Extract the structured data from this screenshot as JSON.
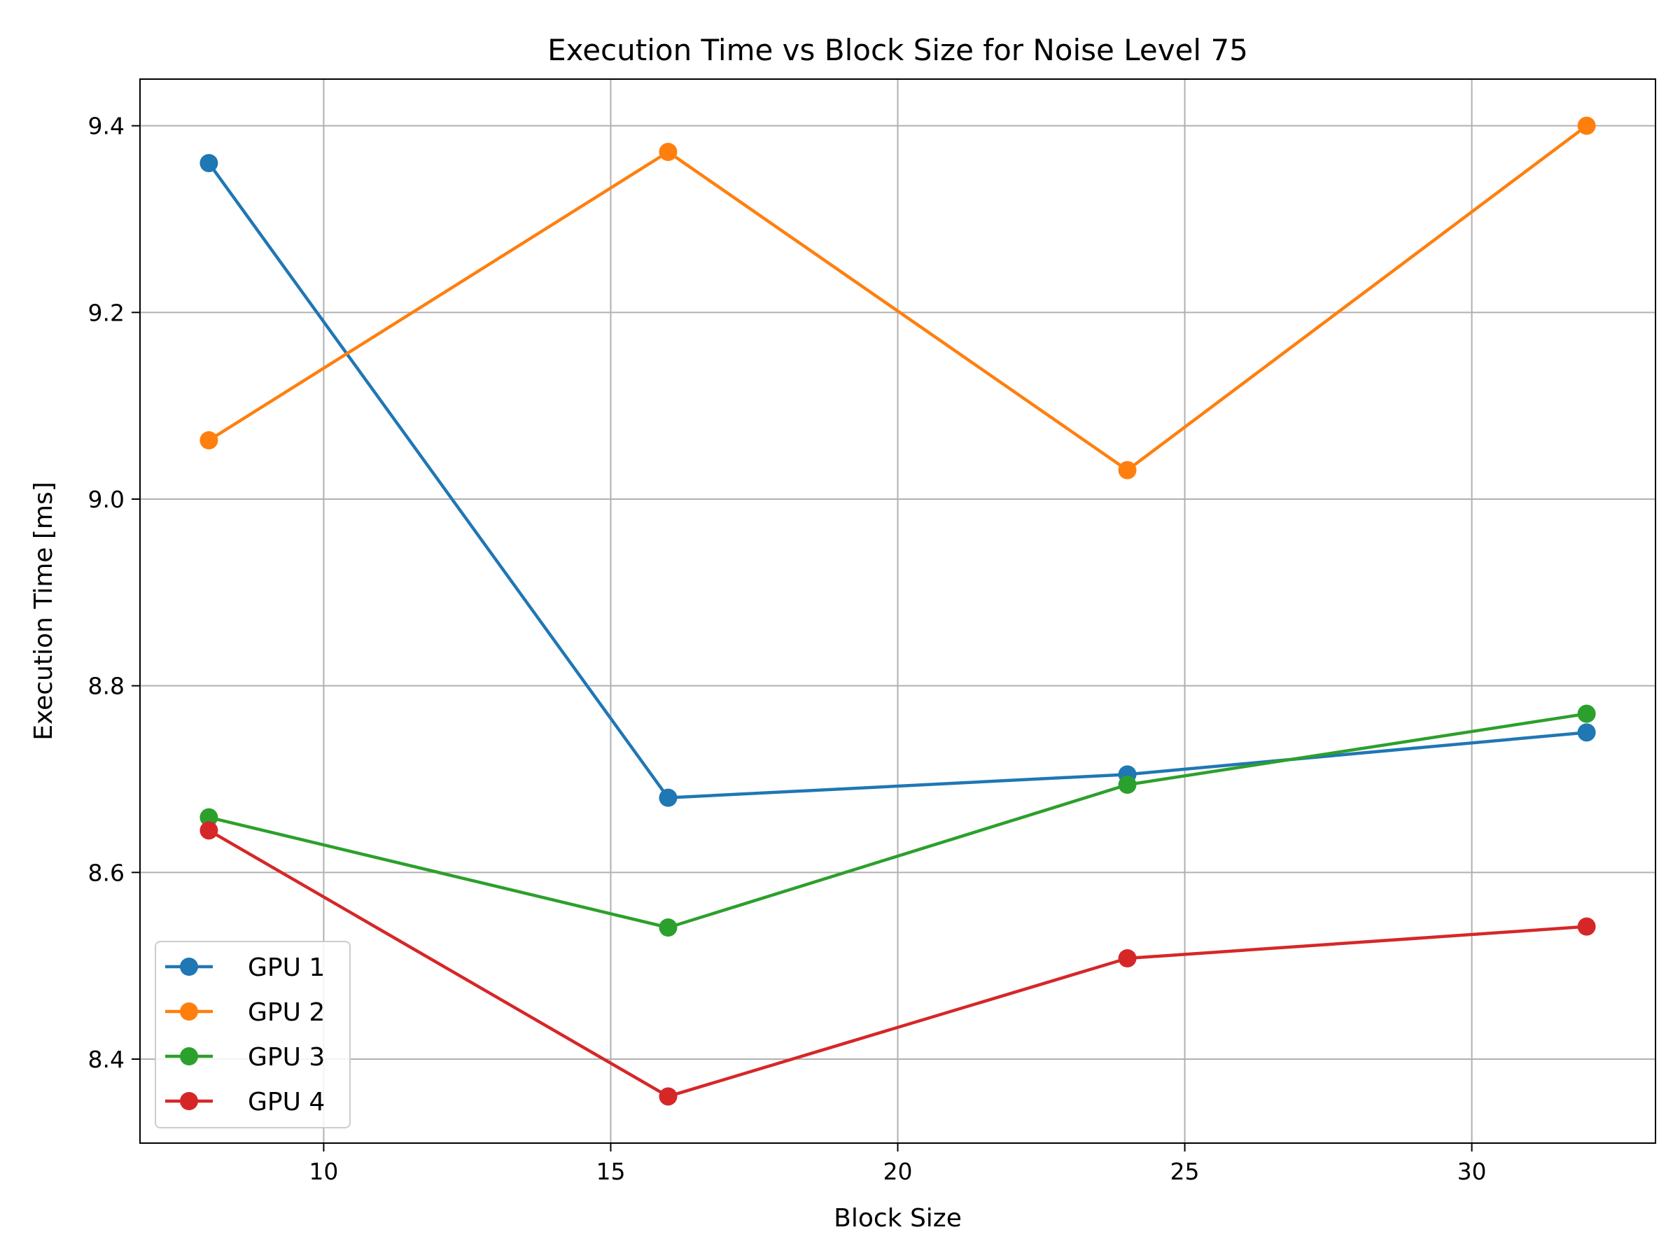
{
  "chart_data": {
    "type": "line",
    "title": "Execution Time vs Block Size for Noise Level 75",
    "xlabel": "Block Size",
    "ylabel": "Execution Time [ms]",
    "x": [
      8,
      16,
      24,
      32
    ],
    "xlim": [
      6.8,
      33.2
    ],
    "ylim": [
      8.31,
      9.45
    ],
    "xticks": [
      10,
      15,
      20,
      25,
      30
    ],
    "yticks": [
      8.4,
      8.6,
      8.8,
      9.0,
      9.2,
      9.4
    ],
    "xtick_labels": [
      "10",
      "15",
      "20",
      "25",
      "30"
    ],
    "ytick_labels": [
      "8.4",
      "8.6",
      "8.8",
      "9.0",
      "9.2",
      "9.4"
    ],
    "grid": true,
    "legend_position": "lower-left",
    "series": [
      {
        "name": "GPU 1",
        "color": "#1f77b4",
        "values": [
          9.36,
          8.68,
          8.705,
          8.75
        ]
      },
      {
        "name": "GPU 2",
        "color": "#ff7f0e",
        "values": [
          9.063,
          9.372,
          9.031,
          9.4
        ]
      },
      {
        "name": "GPU 3",
        "color": "#2ca02c",
        "values": [
          8.659,
          8.541,
          8.694,
          8.77
        ]
      },
      {
        "name": "GPU 4",
        "color": "#d62728",
        "values": [
          8.645,
          8.36,
          8.508,
          8.542
        ]
      }
    ]
  }
}
